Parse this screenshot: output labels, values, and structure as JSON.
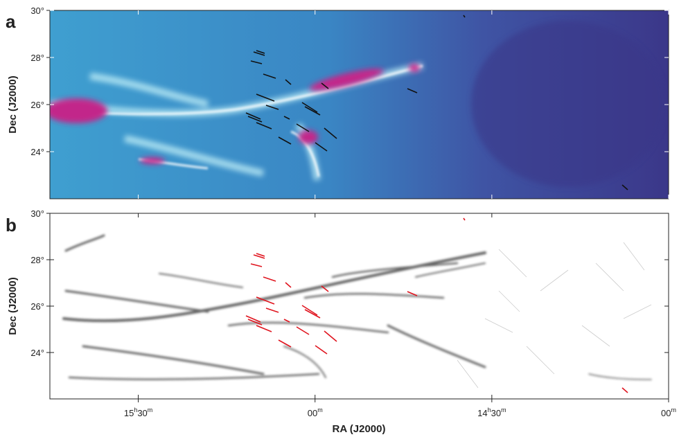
{
  "panels": [
    {
      "label": "a",
      "y_label": "Dec (J2000)",
      "ylim": [
        22,
        30
      ],
      "yticks": [
        {
          "value": 24,
          "label": "24°"
        },
        {
          "value": 26,
          "label": "26°"
        },
        {
          "value": 28,
          "label": "28°"
        },
        {
          "value": 30,
          "label": "30°"
        }
      ]
    },
    {
      "label": "b",
      "y_label": "Dec (J2000)",
      "ylim": [
        22,
        30
      ],
      "yticks": [
        {
          "value": 24,
          "label": "24°"
        },
        {
          "value": 26,
          "label": "26°"
        },
        {
          "value": 28,
          "label": "28°"
        },
        {
          "value": 30,
          "label": "30°"
        }
      ]
    }
  ],
  "x_axis": {
    "label": "RA (J2000)",
    "xlim": [
      945,
      840
    ],
    "ticks": [
      {
        "value": 930,
        "label": [
          "15",
          "h",
          "30",
          "m"
        ]
      },
      {
        "value": 900,
        "label": [
          "00",
          "m"
        ]
      },
      {
        "value": 870,
        "label": [
          "14",
          "h",
          "30",
          "m"
        ]
      },
      {
        "value": 840,
        "label": [
          "00",
          "m"
        ]
      }
    ]
  }
}
